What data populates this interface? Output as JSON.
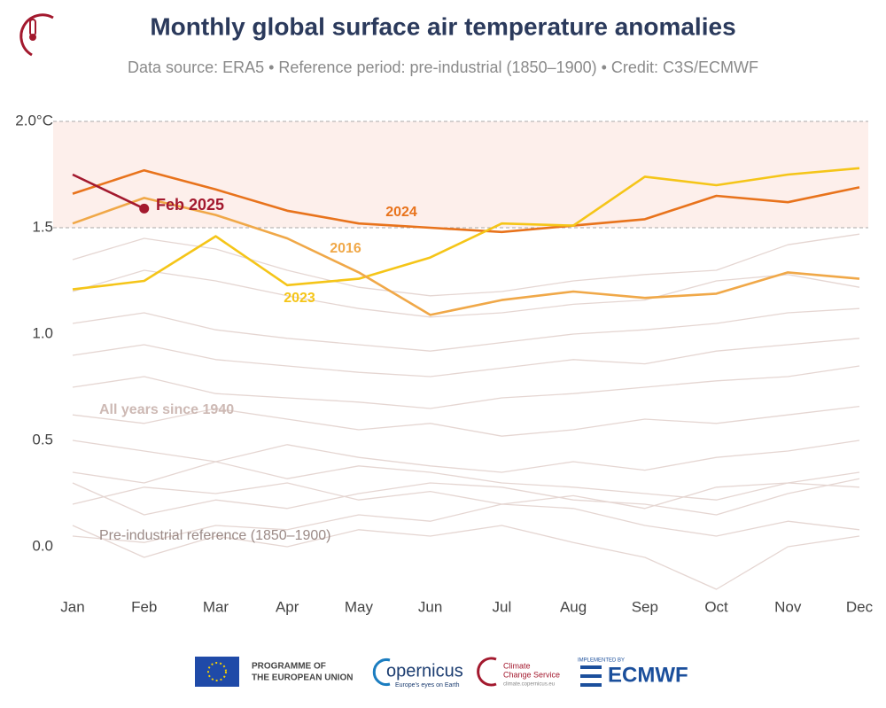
{
  "chart_data": {
    "type": "line",
    "title": "Monthly global surface air temperature anomalies",
    "subtitle": "Data source: ERA5 • Reference period: pre-industrial (1850–1900) • Credit: C3S/ECMWF",
    "categories": [
      "Jan",
      "Feb",
      "Mar",
      "Apr",
      "May",
      "Jun",
      "Jul",
      "Aug",
      "Sep",
      "Oct",
      "Nov",
      "Dec"
    ],
    "ylim": [
      -0.2,
      2.0
    ],
    "yticks": [
      {
        "value": 0,
        "label": "0.0"
      },
      0.5,
      {
        "value": 1,
        "label": "1.0"
      },
      1.5,
      {
        "value": 2,
        "label": "2.0°C"
      }
    ],
    "highlight_range": [
      1.5,
      2.0
    ],
    "background_color": "#e5d6d2",
    "background_series": [
      [
        0.05,
        0.02,
        0.1,
        0.08,
        0.15,
        0.12,
        0.2,
        0.18,
        0.1,
        0.05,
        0.12,
        0.08
      ],
      [
        0.2,
        0.28,
        0.25,
        0.3,
        0.22,
        0.26,
        0.2,
        0.24,
        0.18,
        0.28,
        0.3,
        0.35
      ],
      [
        0.35,
        0.3,
        0.4,
        0.32,
        0.38,
        0.35,
        0.3,
        0.28,
        0.25,
        0.22,
        0.3,
        0.28
      ],
      [
        0.5,
        0.45,
        0.4,
        0.48,
        0.42,
        0.38,
        0.35,
        0.4,
        0.36,
        0.42,
        0.45,
        0.5
      ],
      [
        0.62,
        0.58,
        0.65,
        0.6,
        0.55,
        0.58,
        0.52,
        0.55,
        0.6,
        0.58,
        0.62,
        0.66
      ],
      [
        0.75,
        0.8,
        0.72,
        0.7,
        0.68,
        0.65,
        0.7,
        0.72,
        0.75,
        0.78,
        0.8,
        0.85
      ],
      [
        0.9,
        0.95,
        0.88,
        0.85,
        0.82,
        0.8,
        0.84,
        0.88,
        0.86,
        0.92,
        0.95,
        0.98
      ],
      [
        1.05,
        1.1,
        1.02,
        0.98,
        0.95,
        0.92,
        0.96,
        1.0,
        1.02,
        1.05,
        1.1,
        1.12
      ],
      [
        1.2,
        1.3,
        1.25,
        1.18,
        1.12,
        1.08,
        1.1,
        1.14,
        1.16,
        1.25,
        1.28,
        1.22
      ],
      [
        1.35,
        1.45,
        1.4,
        1.3,
        1.22,
        1.18,
        1.2,
        1.25,
        1.28,
        1.3,
        1.42,
        1.47
      ],
      [
        0.1,
        -0.05,
        0.05,
        0.0,
        0.08,
        0.05,
        0.1,
        0.02,
        -0.05,
        -0.2,
        0.0,
        0.05
      ],
      [
        0.3,
        0.15,
        0.22,
        0.18,
        0.25,
        0.3,
        0.28,
        0.22,
        0.2,
        0.15,
        0.25,
        0.32
      ]
    ],
    "series": [
      {
        "name": "2024",
        "color": "#e8731c",
        "values": [
          1.66,
          1.77,
          1.68,
          1.58,
          1.52,
          1.5,
          1.48,
          1.51,
          1.54,
          1.65,
          1.62,
          1.69
        ]
      },
      {
        "name": "2023",
        "color": "#f5c518",
        "values": [
          1.21,
          1.25,
          1.46,
          1.23,
          1.26,
          1.36,
          1.52,
          1.51,
          1.74,
          1.7,
          1.75,
          1.78
        ]
      },
      {
        "name": "2016",
        "color": "#f0a848",
        "values": [
          1.52,
          1.64,
          1.56,
          1.45,
          1.29,
          1.09,
          1.16,
          1.2,
          1.17,
          1.19,
          1.29,
          1.26
        ]
      },
      {
        "name": "Feb 2025",
        "color": "#a3192e",
        "values": [
          1.75,
          1.59,
          null,
          null,
          null,
          null,
          null,
          null,
          null,
          null,
          null,
          null
        ]
      }
    ],
    "annotations": [
      "All years since 1940",
      "Pre-industrial reference (1850–1900)"
    ]
  },
  "footer": {
    "eu": [
      "PROGRAMME OF",
      "THE EUROPEAN UNION"
    ],
    "copernicus": "opernicus",
    "copernicus_tagline": "Europe's eyes on Earth",
    "c3s": [
      "Climate",
      "Change Service"
    ],
    "c3s_url": "climate.copernicus.eu",
    "implemented": "IMPLEMENTED BY",
    "ecmwf": "ECMWF"
  }
}
